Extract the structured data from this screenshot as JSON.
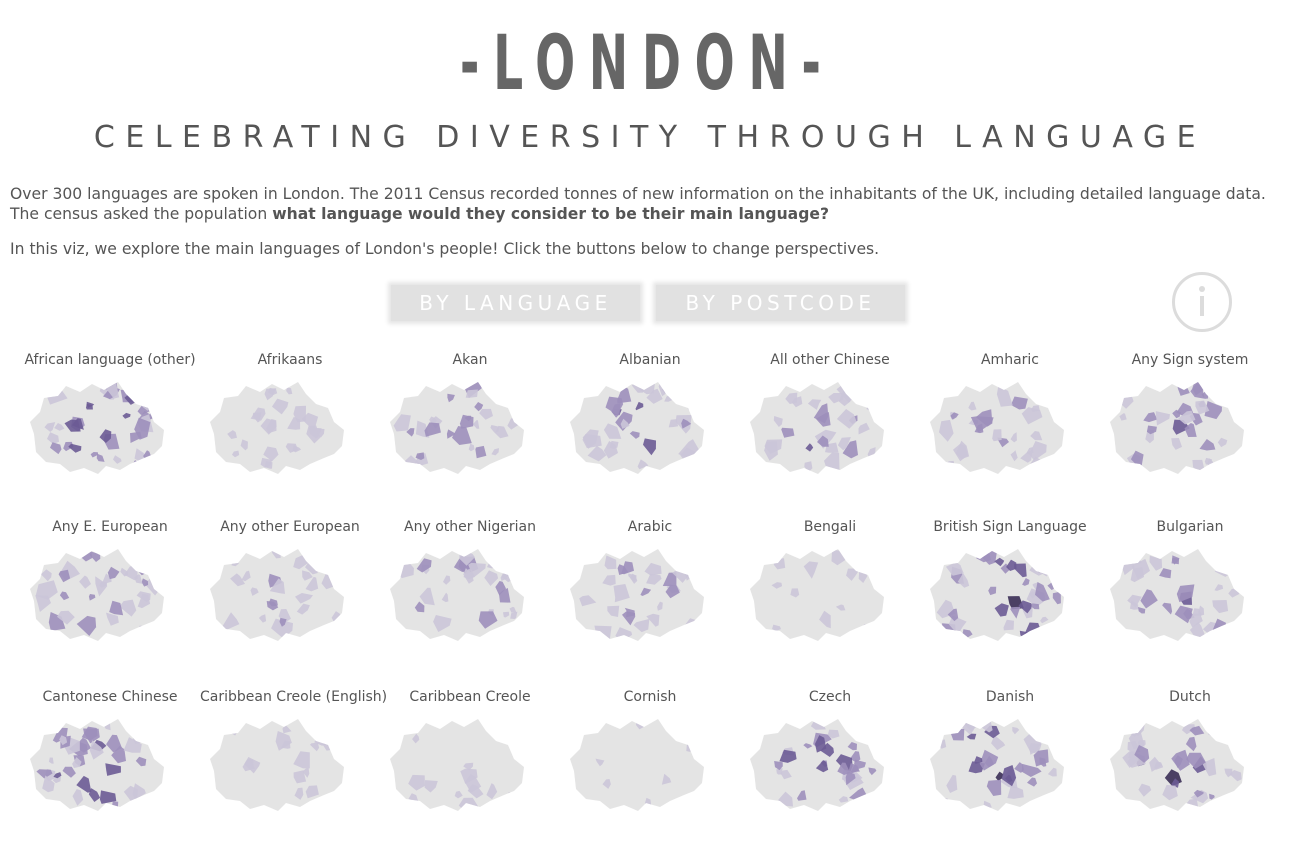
{
  "header": {
    "title": "-LONDON-",
    "subtitle": "CELEBRATING DIVERSITY THROUGH LANGUAGE"
  },
  "intro": {
    "line1": "Over 300 languages are spoken in London. The 2011 Census recorded tonnes of new information on the inhabitants of the UK, including detailed language data.",
    "line2_prefix": "The census asked the population ",
    "line2_bold": "what language would they consider to be their main language?",
    "line3": "In this viz, we explore the main languages of London's people! Click the buttons below to change perspectives."
  },
  "buttons": {
    "by_language": "BY LANGUAGE",
    "by_postcode": "BY POSTCODE"
  },
  "info_icon": "info-icon",
  "colors": {
    "base": "#e4e4e4",
    "light": "#cbc5d8",
    "medium": "#9d8fbb",
    "dark": "#6b5b95",
    "darkest": "#3a2d55"
  },
  "maps": [
    {
      "label": "African language (other)",
      "intensity": 0.8
    },
    {
      "label": "Afrikaans",
      "intensity": 0.45
    },
    {
      "label": "Akan",
      "intensity": 0.55
    },
    {
      "label": "Albanian",
      "intensity": 0.7
    },
    {
      "label": "All other Chinese",
      "intensity": 0.6
    },
    {
      "label": "Amharic",
      "intensity": 0.5
    },
    {
      "label": "Any Sign system",
      "intensity": 0.6
    },
    {
      "label": "Any E. European",
      "intensity": 0.65
    },
    {
      "label": "Any other European",
      "intensity": 0.5
    },
    {
      "label": "Any other Nigerian",
      "intensity": 0.6
    },
    {
      "label": "Arabic",
      "intensity": 0.55
    },
    {
      "label": "Bengali",
      "intensity": 0.2
    },
    {
      "label": "British Sign Language",
      "intensity": 0.85
    },
    {
      "label": "Bulgarian",
      "intensity": 0.7
    },
    {
      "label": "Cantonese Chinese",
      "intensity": 0.75
    },
    {
      "label": "Caribbean Creole (English)",
      "intensity": 0.3
    },
    {
      "label": "Caribbean Creole",
      "intensity": 0.2
    },
    {
      "label": "Cornish",
      "intensity": 0.05
    },
    {
      "label": "Czech",
      "intensity": 0.7
    },
    {
      "label": "Danish",
      "intensity": 0.75
    },
    {
      "label": "Dutch",
      "intensity": 0.75
    }
  ]
}
